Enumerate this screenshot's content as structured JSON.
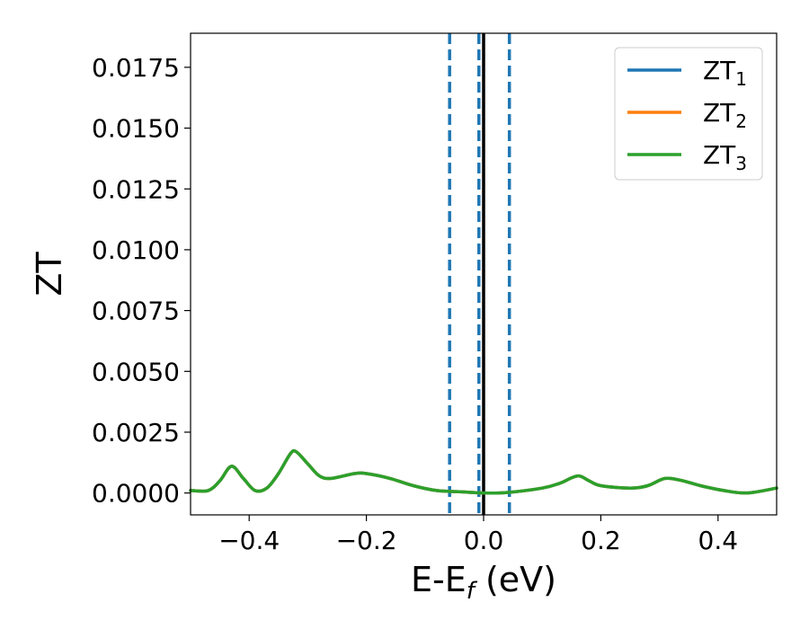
{
  "chart_data": {
    "type": "line",
    "xlabel": "E-E",
    "xlabel_sub": "f",
    "xlabel_unit": " (eV)",
    "ylabel": "ZT",
    "xlim": [
      -0.5,
      0.5
    ],
    "ylim": [
      -0.0009,
      0.0189
    ],
    "x_ticks": [
      -0.4,
      -0.2,
      0.0,
      0.2,
      0.4
    ],
    "x_tick_labels": [
      "−0.4",
      "−0.2",
      "0.0",
      "0.2",
      "0.4"
    ],
    "y_ticks": [
      0.0,
      0.0025,
      0.005,
      0.0075,
      0.01,
      0.0125,
      0.015,
      0.0175
    ],
    "y_tick_labels": [
      "0.0000",
      "0.0025",
      "0.0050",
      "0.0075",
      "0.0100",
      "0.0125",
      "0.0150",
      "0.0175"
    ],
    "grid": false,
    "legend_position": "top-right",
    "series": [
      {
        "name": "ZT",
        "sub": "1",
        "color": "#1f77b4",
        "x": [
          -0.5,
          -0.47,
          -0.45,
          -0.43,
          -0.41,
          -0.39,
          -0.37,
          -0.35,
          -0.33,
          -0.32,
          -0.3,
          -0.28,
          -0.26,
          -0.22,
          -0.2,
          -0.16,
          -0.12,
          -0.08,
          -0.04,
          0.0,
          0.04,
          0.1,
          0.13,
          0.16,
          0.18,
          0.2,
          0.25,
          0.28,
          0.31,
          0.34,
          0.37,
          0.41,
          0.45,
          0.5
        ],
        "y": [
          0.0001,
          0.0001,
          0.0005,
          0.0011,
          0.0006,
          0.0001,
          0.0002,
          0.0008,
          0.0016,
          0.0017,
          0.0012,
          0.0007,
          0.0006,
          0.0008,
          0.0008,
          0.0006,
          0.0003,
          0.0001,
          5e-05,
          0.0,
          2e-05,
          0.0002,
          0.0004,
          0.0007,
          0.0005,
          0.0003,
          0.0002,
          0.0003,
          0.0006,
          0.0005,
          0.0003,
          0.0001,
          0.0,
          0.0002
        ]
      },
      {
        "name": "ZT",
        "sub": "2",
        "color": "#ff7f0e",
        "x": [
          -0.5,
          -0.47,
          -0.45,
          -0.43,
          -0.41,
          -0.39,
          -0.37,
          -0.35,
          -0.33,
          -0.32,
          -0.3,
          -0.28,
          -0.26,
          -0.22,
          -0.2,
          -0.16,
          -0.12,
          -0.08,
          -0.04,
          0.0,
          0.04,
          0.1,
          0.13,
          0.16,
          0.18,
          0.2,
          0.25,
          0.28,
          0.31,
          0.34,
          0.37,
          0.41,
          0.45,
          0.5
        ],
        "y": [
          0.0001,
          0.0001,
          0.0005,
          0.0011,
          0.0006,
          0.0001,
          0.0002,
          0.0008,
          0.0016,
          0.0017,
          0.0012,
          0.0007,
          0.0006,
          0.0008,
          0.0008,
          0.0006,
          0.0003,
          0.0001,
          5e-05,
          0.0,
          2e-05,
          0.0002,
          0.0004,
          0.0007,
          0.0005,
          0.0003,
          0.0002,
          0.0003,
          0.0006,
          0.0005,
          0.0003,
          0.0001,
          0.0,
          0.0002
        ]
      },
      {
        "name": "ZT",
        "sub": "3",
        "color": "#2ca02c",
        "x": [
          -0.5,
          -0.47,
          -0.45,
          -0.43,
          -0.41,
          -0.39,
          -0.37,
          -0.35,
          -0.33,
          -0.32,
          -0.3,
          -0.28,
          -0.26,
          -0.22,
          -0.2,
          -0.16,
          -0.12,
          -0.08,
          -0.04,
          0.0,
          0.04,
          0.1,
          0.13,
          0.16,
          0.18,
          0.2,
          0.25,
          0.28,
          0.31,
          0.34,
          0.37,
          0.41,
          0.45,
          0.5
        ],
        "y": [
          0.0001,
          0.0001,
          0.0005,
          0.0011,
          0.0006,
          0.0001,
          0.0002,
          0.0008,
          0.0016,
          0.0017,
          0.0012,
          0.0007,
          0.0006,
          0.0008,
          0.0008,
          0.0006,
          0.0003,
          0.0001,
          5e-05,
          0.0,
          2e-05,
          0.0002,
          0.0004,
          0.0007,
          0.0005,
          0.0003,
          0.0002,
          0.0003,
          0.0006,
          0.0005,
          0.0003,
          0.0001,
          0.0,
          0.0002
        ]
      }
    ],
    "vlines": [
      {
        "x": 0.0,
        "style": "solid",
        "color": "#000000"
      },
      {
        "x": -0.058,
        "style": "dashed",
        "color": "#1f77b4"
      },
      {
        "x": -0.008,
        "style": "dashed",
        "color": "#1f77b4"
      },
      {
        "x": 0.044,
        "style": "dashed",
        "color": "#1f77b4"
      }
    ]
  }
}
